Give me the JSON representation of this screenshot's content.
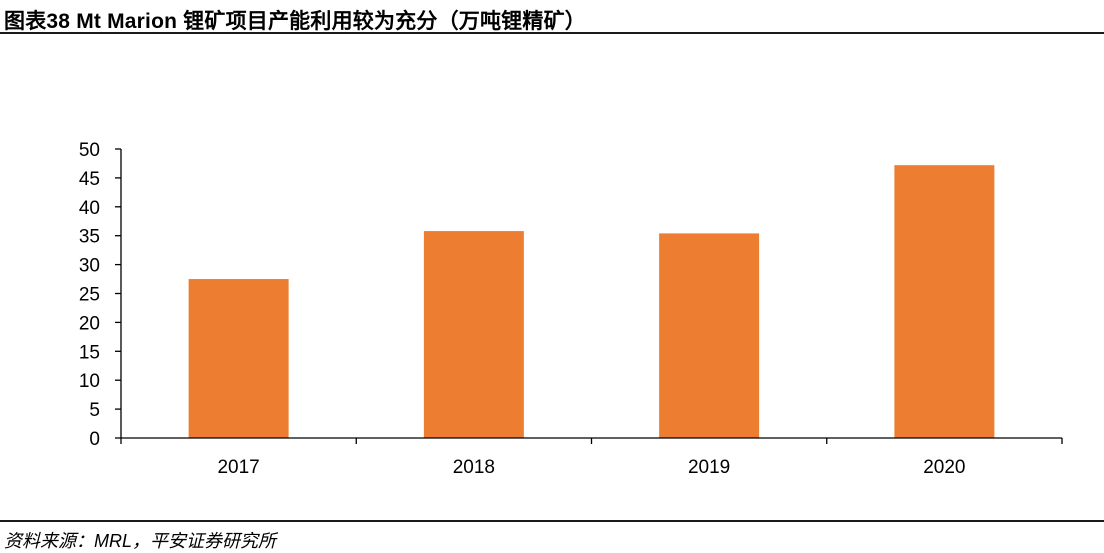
{
  "header": {
    "title": "图表38    Mt Marion 锂矿项目产能利用较为充分（万吨锂精矿）"
  },
  "footer": {
    "source": "资料来源：MRL，平安证券研究所"
  },
  "colors": {
    "bar": "#ED7D31",
    "axis": "#000000",
    "rule": "#1a1a1a"
  },
  "chart_data": {
    "type": "bar",
    "title": "",
    "xlabel": "",
    "ylabel": "",
    "categories": [
      "2017",
      "2018",
      "2019",
      "2020"
    ],
    "values": [
      27.5,
      35.8,
      35.4,
      47.2
    ],
    "ylim": [
      0,
      50
    ],
    "yticks": [
      "0",
      "5",
      "10",
      "15",
      "20",
      "25",
      "30",
      "35",
      "40",
      "45",
      "50"
    ],
    "grid": false,
    "legend": "none"
  }
}
